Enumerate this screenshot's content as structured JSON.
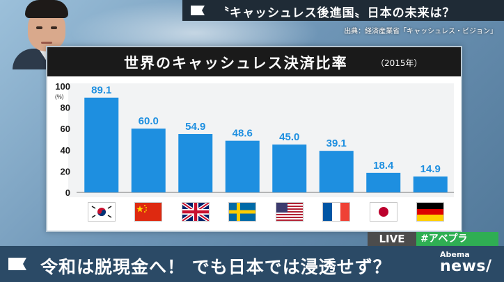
{
  "broadcast": {
    "headline": "〝キャッシュレス後進国〟日本の未来は？",
    "source": "出典：経済産業省「キャッシュレス・ビジョン」",
    "live_label": "LIVE",
    "hashtag": "#アベプラ",
    "caption": "令和は脱現金へ！ でも日本では浸透せず？",
    "logo_small": "Abema",
    "logo_big": "news/"
  },
  "chart_data": {
    "type": "bar",
    "title": "世界のキャッシュレス決済比率",
    "subtitle": "（2015年）",
    "ylabel": "(%)",
    "ylim": [
      0,
      100
    ],
    "yticks": [
      0,
      20,
      40,
      60,
      80,
      100
    ],
    "grid": false,
    "legend": "none",
    "categories": [
      "korea-flag",
      "china-flag",
      "uk-flag",
      "sweden-flag",
      "usa-flag",
      "france-flag",
      "japan-flag",
      "germany-flag"
    ],
    "values": [
      89.1,
      60.0,
      54.9,
      48.6,
      45.0,
      39.1,
      18.4,
      14.9
    ],
    "value_labels": [
      "89.1",
      "60.0",
      "54.9",
      "48.6",
      "45.0",
      "39.1",
      "18.4",
      "14.9"
    ],
    "bar_color": "#1e8fe0",
    "label_color": "#1e8fe0"
  },
  "colors": {
    "accent_blue": "#1e8fe0",
    "hashtag_green": "#2fae53",
    "caption_bg": "#2b4a66"
  }
}
